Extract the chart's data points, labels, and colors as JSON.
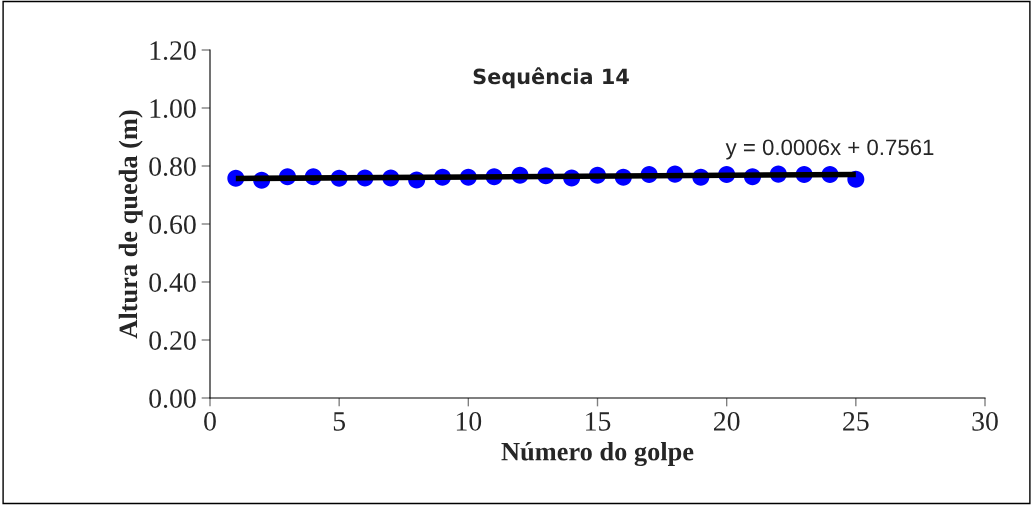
{
  "chart_data": {
    "type": "scatter",
    "title": "Sequência 14",
    "xlabel": "Número do golpe",
    "ylabel": "Altura de queda (m)",
    "x": [
      1,
      2,
      3,
      4,
      5,
      6,
      7,
      8,
      9,
      10,
      11,
      12,
      13,
      14,
      15,
      16,
      17,
      18,
      19,
      20,
      21,
      22,
      23,
      24,
      25
    ],
    "series": [
      {
        "color": "#0000ff",
        "marker": "circle",
        "values": [
          0.758,
          0.751,
          0.763,
          0.763,
          0.758,
          0.759,
          0.759,
          0.752,
          0.761,
          0.761,
          0.763,
          0.768,
          0.766,
          0.759,
          0.768,
          0.761,
          0.771,
          0.772,
          0.761,
          0.771,
          0.763,
          0.772,
          0.771,
          0.771,
          0.754
        ]
      },
      {
        "type": "line",
        "color": "#000000",
        "x": [
          1,
          25
        ],
        "values": [
          0.757,
          0.771
        ]
      }
    ],
    "annotations": [
      "y = 0.0006x + 0.7561"
    ],
    "xlim": [
      0,
      30
    ],
    "xticks": [
      0,
      5,
      10,
      15,
      20,
      25,
      30
    ],
    "ylim": [
      0,
      1.2
    ],
    "yticks": [
      {
        "value": 0,
        "label": "0.00"
      },
      {
        "value": 0.2,
        "label": "0.20"
      },
      {
        "value": 0.4,
        "label": "0.40"
      },
      {
        "value": 0.6,
        "label": "0.60"
      },
      {
        "value": 0.8,
        "label": "0.80"
      },
      {
        "value": 1.0,
        "label": "1.00"
      },
      {
        "value": 1.2,
        "label": "1.20"
      }
    ],
    "grid": false,
    "legend": false
  }
}
